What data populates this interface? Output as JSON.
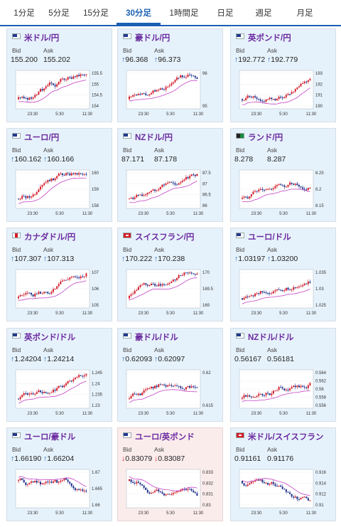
{
  "tabs": [
    {
      "label": "1分足",
      "active": false
    },
    {
      "label": "5分足",
      "active": false
    },
    {
      "label": "15分足",
      "active": false
    },
    {
      "label": "30分足",
      "active": true
    },
    {
      "label": "1時間足",
      "active": false
    },
    {
      "label": "日足",
      "active": false
    },
    {
      "label": "週足",
      "active": false
    },
    {
      "label": "月足",
      "active": false
    }
  ],
  "labels": {
    "bid": "Bid",
    "ask": "Ask"
  },
  "colors": {
    "accent": "#1a5fb4",
    "up": "#d31d2a",
    "down": "#1d2f8a",
    "ma": "#c440c6",
    "pair": "#6c2ba0",
    "card_bg": "#e6f2fb",
    "card_bg_down": "#fbecec"
  },
  "x_ticks": [
    "23:30",
    "5:30",
    "11:30"
  ],
  "cards": [
    {
      "pair": "米ドル/円",
      "flag": "us",
      "arrow": "",
      "bid": "155.200",
      "ask": "155.202",
      "y_ticks": [
        "155.5",
        "155",
        "154.5",
        "154"
      ],
      "trend": "up",
      "alert": false
    },
    {
      "pair": "豪ドル/円",
      "flag": "au",
      "arrow": "↑",
      "bid": "96.368",
      "ask": "96.373",
      "y_ticks": [
        "96",
        "95"
      ],
      "trend": "up",
      "alert": false
    },
    {
      "pair": "英ポンド/円",
      "flag": "gb",
      "arrow": "↑",
      "bid": "192.772",
      "ask": "192.779",
      "y_ticks": [
        "193",
        "192",
        "191",
        "190"
      ],
      "trend": "up",
      "alert": false
    },
    {
      "pair": "ユーロ/円",
      "flag": "eu",
      "arrow": "↑",
      "bid": "160.162",
      "ask": "160.166",
      "y_ticks": [
        "160",
        "159",
        "158"
      ],
      "trend": "up",
      "alert": false
    },
    {
      "pair": "NZドル/円",
      "flag": "nz",
      "arrow": "",
      "bid": "87.171",
      "ask": "87.178",
      "y_ticks": [
        "87.5",
        "87",
        "86.5",
        "86"
      ],
      "trend": "up",
      "alert": false
    },
    {
      "pair": "ランド/円",
      "flag": "za",
      "arrow": "",
      "bid": "8.278",
      "ask": "8.287",
      "y_ticks": [
        "8.25",
        "8.2",
        "8.15"
      ],
      "trend": "up",
      "alert": false
    },
    {
      "pair": "カナダドル/円",
      "flag": "ca",
      "arrow": "↑",
      "bid": "107.307",
      "ask": "107.313",
      "y_ticks": [
        "107",
        "106",
        "105"
      ],
      "trend": "up",
      "alert": false
    },
    {
      "pair": "スイスフラン/円",
      "flag": "ch",
      "arrow": "↑",
      "bid": "170.222",
      "ask": "170.238",
      "y_ticks": [
        "170",
        "169.5",
        "169"
      ],
      "trend": "up",
      "alert": false
    },
    {
      "pair": "ユーロ/ドル",
      "flag": "eu",
      "arrow": "↑",
      "bid": "1.03197",
      "ask": "1.03200",
      "y_ticks": [
        "1.035",
        "1.03",
        "1.025"
      ],
      "trend": "up",
      "alert": false
    },
    {
      "pair": "英ポンド/ドル",
      "flag": "gb",
      "arrow": "↑",
      "bid": "1.24204",
      "ask": "1.24214",
      "y_ticks": [
        "1.245",
        "1.24",
        "1.235",
        "1.23"
      ],
      "trend": "up",
      "alert": false
    },
    {
      "pair": "豪ドル/ドル",
      "flag": "au",
      "arrow": "↑",
      "bid": "0.62093",
      "ask": "0.62097",
      "y_ticks": [
        "0.62",
        "0.615"
      ],
      "trend": "up",
      "alert": false
    },
    {
      "pair": "NZドル/ドル",
      "flag": "nz",
      "arrow": "",
      "bid": "0.56167",
      "ask": "0.56181",
      "y_ticks": [
        "0.564",
        "0.562",
        "0.56",
        "0.558",
        "0.556"
      ],
      "trend": "up",
      "alert": false
    },
    {
      "pair": "ユーロ/豪ドル",
      "flag": "eu",
      "arrow": "↑",
      "bid": "1.66190",
      "ask": "1.66204",
      "y_ticks": [
        "1.67",
        "1.665",
        "1.66"
      ],
      "trend": "down",
      "alert": false
    },
    {
      "pair": "ユーロ/英ポンド",
      "flag": "eu",
      "arrow": "↓",
      "bid": "0.83079",
      "ask": "0.83087",
      "y_ticks": [
        "0.833",
        "0.832",
        "0.831",
        "0.83"
      ],
      "trend": "down",
      "alert": true
    },
    {
      "pair": "米ドル/スイスフラン",
      "flag": "ch",
      "arrow": "",
      "bid": "0.91161",
      "ask": "0.91176",
      "y_ticks": [
        "0.916",
        "0.914",
        "0.912",
        "0.91"
      ],
      "trend": "down",
      "alert": false
    }
  ]
}
